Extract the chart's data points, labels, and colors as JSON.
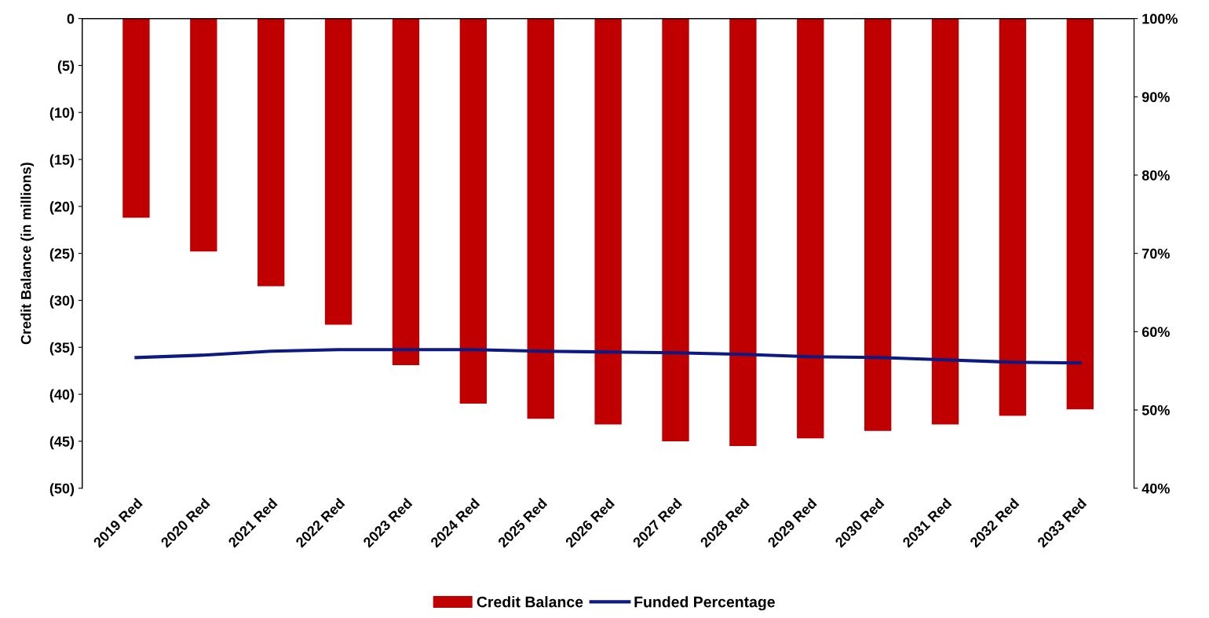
{
  "chart_data": {
    "type": "bar",
    "ylabel": "Credit Balance (in millions)",
    "categories": [
      "2019 Red",
      "2020 Red",
      "2021 Red",
      "2022 Red",
      "2023 Red",
      "2024 Red",
      "2025 Red",
      "2026 Red",
      "2027 Red",
      "2028 Red",
      "2029 Red",
      "2030 Red",
      "2031 Red",
      "2032 Red",
      "2033 Red"
    ],
    "series": [
      {
        "name": "Credit Balance",
        "color": "#c00000",
        "values": [
          -21.2,
          -24.8,
          -28.5,
          -32.6,
          -36.9,
          -41.0,
          -42.6,
          -43.2,
          -45.0,
          -45.5,
          -44.7,
          -43.9,
          -43.2,
          -42.3,
          -41.6
        ]
      },
      {
        "name": "Funded Percentage",
        "type": "line",
        "axis": "y2",
        "color": "#0d1a80",
        "values": [
          56.7,
          57.0,
          57.5,
          57.7,
          57.7,
          57.7,
          57.5,
          57.4,
          57.3,
          57.1,
          56.8,
          56.7,
          56.4,
          56.1,
          56.0
        ]
      }
    ],
    "ylim": [
      -50,
      0
    ],
    "yticks": [
      {
        "value": 0,
        "label": "0"
      },
      {
        "value": -5,
        "label": "(5)"
      },
      {
        "value": -10,
        "label": "(10)"
      },
      {
        "value": -15,
        "label": "(15)"
      },
      {
        "value": -20,
        "label": "(20)"
      },
      {
        "value": -25,
        "label": "(25)"
      },
      {
        "value": -30,
        "label": "(30)"
      },
      {
        "value": -35,
        "label": "(35)"
      },
      {
        "value": -40,
        "label": "(40)"
      },
      {
        "value": -45,
        "label": "(45)"
      },
      {
        "value": -50,
        "label": "(50)"
      }
    ],
    "y2lim": [
      40,
      100
    ],
    "y2ticks": [
      {
        "value": 40,
        "label": "40%"
      },
      {
        "value": 50,
        "label": "50%"
      },
      {
        "value": 60,
        "label": "60%"
      },
      {
        "value": 70,
        "label": "70%"
      },
      {
        "value": 80,
        "label": "80%"
      },
      {
        "value": 90,
        "label": "90%"
      },
      {
        "value": 100,
        "label": "100%"
      }
    ],
    "legend": "bottom",
    "grid": false,
    "marker": "none",
    "line_style": "solid"
  }
}
